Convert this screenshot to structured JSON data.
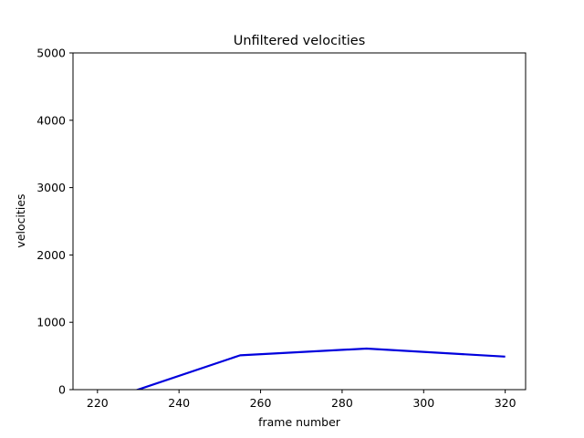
{
  "chart_data": {
    "type": "line",
    "title": "Unfiltered velocities",
    "xlabel": "frame number",
    "ylabel": "velocities",
    "xlim": [
      214,
      325
    ],
    "ylim": [
      0,
      5000
    ],
    "xticks": [
      220,
      240,
      260,
      280,
      300,
      320
    ],
    "yticks": [
      0,
      1000,
      2000,
      3000,
      4000,
      5000
    ],
    "grid": false,
    "series": [
      {
        "color": "#0000dd",
        "x": [
          226,
          255,
          286,
          320
        ],
        "y": [
          -80,
          510,
          610,
          490
        ]
      }
    ]
  }
}
